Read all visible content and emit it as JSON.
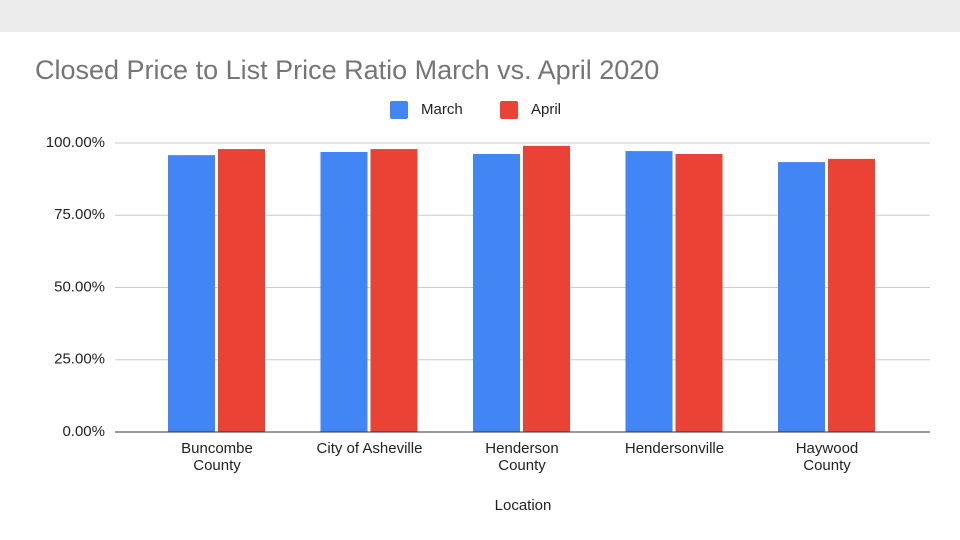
{
  "chart_data": {
    "type": "bar",
    "title": "Closed Price to List Price Ratio March vs. April 2020",
    "x_label": "Location",
    "categories": [
      "Buncombe County",
      "City of Asheville",
      "Henderson County",
      "Hendersonville",
      "Haywood County"
    ],
    "series": [
      {
        "name": "March",
        "color": "#4285f4",
        "values": [
          95.8,
          96.9,
          96.2,
          97.2,
          93.4
        ]
      },
      {
        "name": "April",
        "color": "#ea4335",
        "values": [
          97.9,
          97.9,
          99.0,
          96.2,
          94.5
        ]
      }
    ],
    "ylim": [
      0,
      100
    ],
    "yticks": [
      {
        "value": 0,
        "label": "0.00%"
      },
      {
        "value": 25,
        "label": "25.00%"
      },
      {
        "value": 50,
        "label": "50.00%"
      },
      {
        "value": 75,
        "label": "75.00%"
      },
      {
        "value": 100,
        "label": "100.00%"
      }
    ],
    "grid": true,
    "legend": "top"
  }
}
